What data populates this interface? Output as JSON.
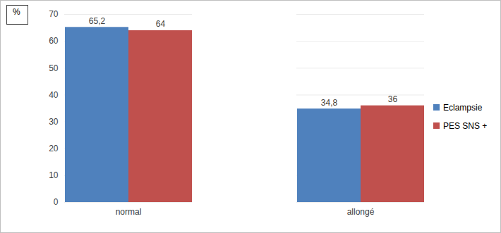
{
  "chart_data": {
    "type": "bar",
    "ylabel": "%",
    "categories": [
      "normal",
      "allongé"
    ],
    "series": [
      {
        "name": "Eclampsie",
        "color": "#4f81bd",
        "values": [
          65.2,
          34.8
        ],
        "value_labels": [
          "65,2",
          "34,8"
        ]
      },
      {
        "name": "PES SNS +",
        "color": "#c0504d",
        "values": [
          64,
          36
        ],
        "value_labels": [
          "64",
          "36"
        ]
      }
    ],
    "ylim": [
      0,
      70
    ],
    "yticks": [
      0,
      10,
      20,
      30,
      40,
      50,
      60,
      70
    ],
    "grid": true,
    "legend": "right",
    "data_labels": true
  }
}
